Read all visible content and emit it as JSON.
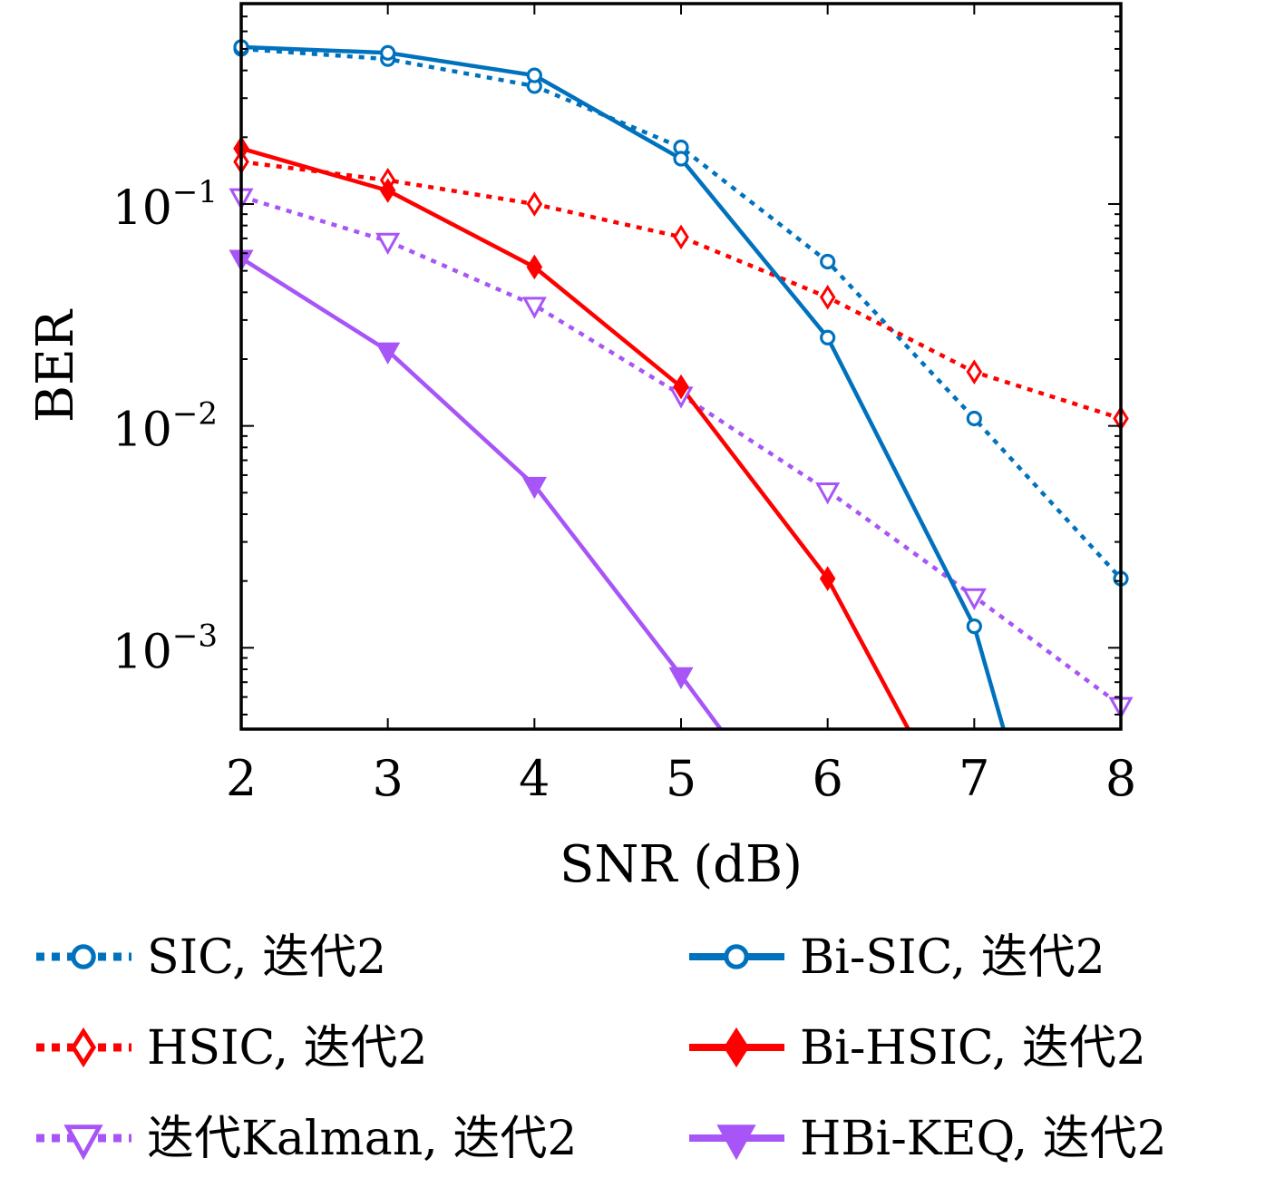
{
  "chart_data": {
    "type": "line",
    "xlabel": "SNR (dB)",
    "ylabel": "BER",
    "yscale": "log",
    "xlim": [
      2,
      8
    ],
    "ylim": [
      0.00043,
      0.8
    ],
    "xticks": [
      2,
      3,
      4,
      5,
      6,
      7,
      8
    ],
    "xtick_labels": [
      "2",
      "3",
      "4",
      "5",
      "6",
      "7",
      "8"
    ],
    "yticks": [
      0.1,
      0.01,
      0.001
    ],
    "ytick_labels": [
      {
        "base": "10",
        "exp": "−1"
      },
      {
        "base": "10",
        "exp": "−2"
      },
      {
        "base": "10",
        "exp": "−3"
      }
    ],
    "grid": false,
    "legend_position": "bottom",
    "series": [
      {
        "name": "SIC, 迭代2",
        "color": "#0072BD",
        "dash": "dotted",
        "marker": "circle-open",
        "x": [
          2,
          3,
          4,
          5,
          6,
          7,
          8
        ],
        "y": [
          0.5,
          0.45,
          0.34,
          0.18,
          0.055,
          0.0108,
          0.00205
        ]
      },
      {
        "name": "HSIC, 迭代2",
        "color": "#FF0000",
        "dash": "dotted",
        "marker": "diamond-open",
        "x": [
          2,
          3,
          4,
          5,
          6,
          7,
          8
        ],
        "y": [
          0.155,
          0.128,
          0.1,
          0.071,
          0.038,
          0.0175,
          0.0108
        ]
      },
      {
        "name": "迭代Kalman, 迭代2",
        "color": "#A855F7",
        "dash": "dotted",
        "marker": "tri-down-open",
        "x": [
          2,
          3,
          4,
          5,
          6,
          7,
          8
        ],
        "y": [
          0.108,
          0.068,
          0.035,
          0.0138,
          0.0051,
          0.0017,
          0.00055
        ]
      },
      {
        "name": "Bi-SIC, 迭代2",
        "color": "#0072BD",
        "dash": "solid",
        "marker": "circle-open",
        "x": [
          2,
          3,
          4,
          5,
          6,
          7,
          7.2
        ],
        "y": [
          0.51,
          0.48,
          0.38,
          0.16,
          0.025,
          0.00125,
          0.00043
        ]
      },
      {
        "name": "Bi-HSIC, 迭代2",
        "color": "#FF0000",
        "dash": "solid",
        "marker": "diamond-filled",
        "x": [
          2,
          3,
          4,
          5,
          6,
          6.55
        ],
        "y": [
          0.178,
          0.115,
          0.052,
          0.015,
          0.00205,
          0.00043
        ]
      },
      {
        "name": "HBi-KEQ, 迭代2",
        "color": "#A855F7",
        "dash": "solid",
        "marker": "tri-down-filled",
        "x": [
          2,
          3,
          4,
          5,
          5.27
        ],
        "y": [
          0.057,
          0.0218,
          0.0054,
          0.00075,
          0.00043
        ]
      }
    ]
  }
}
